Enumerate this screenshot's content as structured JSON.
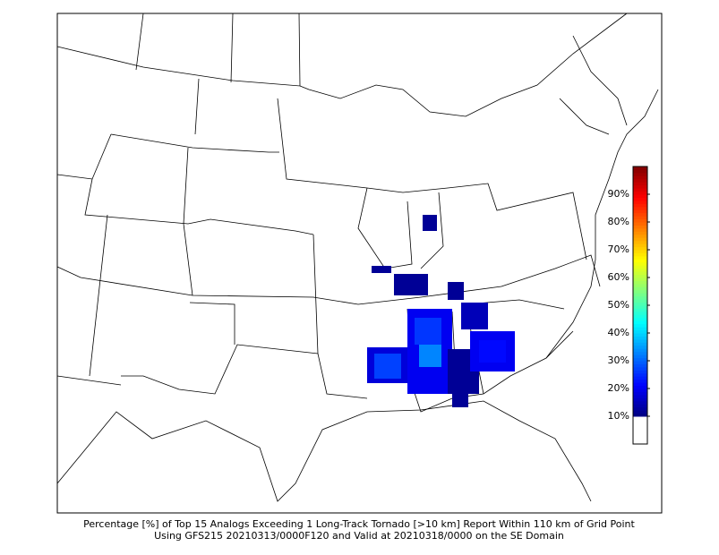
{
  "caption": [
    "Percentage [%] of Top 15 Analogs Exceeding 1 Long-Track Tornado [>10 km] Report Within 110 km of Grid Point",
    "Using GFS215 20210313/0000F120 and Valid at 20210318/0000 on the SE Domain"
  ],
  "colorbar": {
    "lim": [
      0,
      100
    ],
    "ticks": [
      {
        "value": 10,
        "label": "10%"
      },
      {
        "value": 20,
        "label": "20%"
      },
      {
        "value": 30,
        "label": "30%"
      },
      {
        "value": 40,
        "label": "40%"
      },
      {
        "value": 50,
        "label": "50%"
      },
      {
        "value": 60,
        "label": "60%"
      },
      {
        "value": 70,
        "label": "70%"
      },
      {
        "value": 80,
        "label": "80%"
      },
      {
        "value": 90,
        "label": "90%"
      }
    ]
  },
  "cells": {
    "values": [
      12,
      12,
      12,
      12,
      18,
      27,
      20,
      26,
      33,
      12,
      12,
      15,
      20,
      22
    ]
  }
}
